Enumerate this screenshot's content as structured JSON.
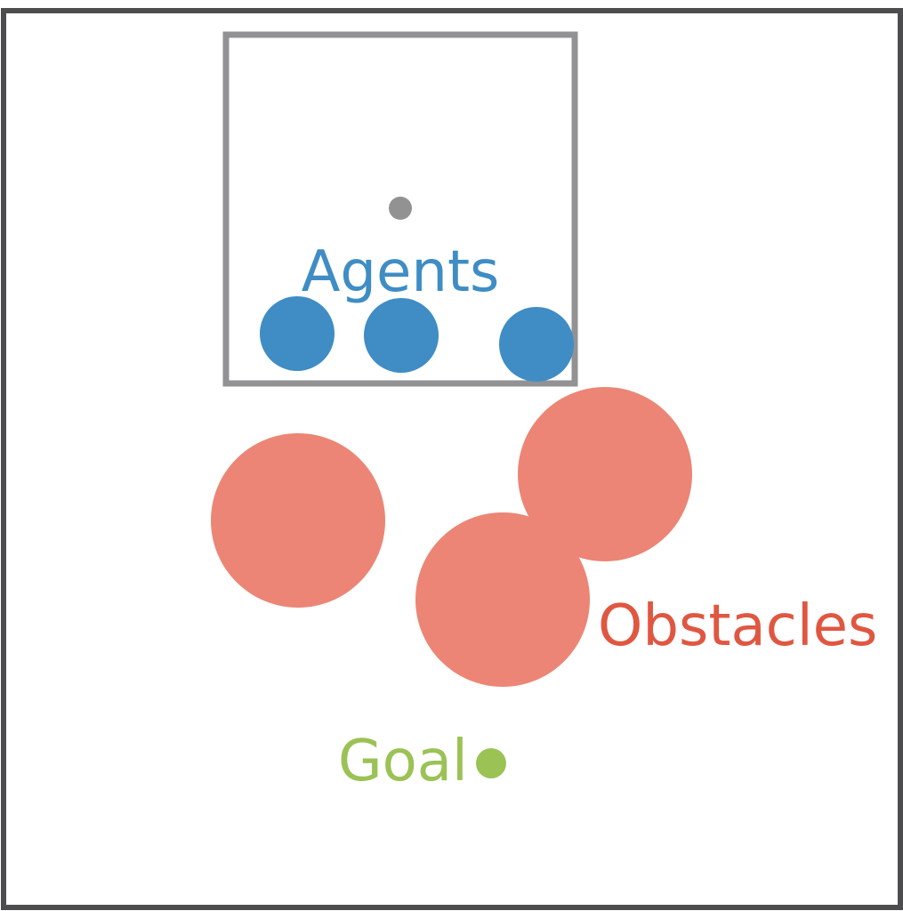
{
  "labels": {
    "agents": "Agents",
    "obstacles": "Obstacles",
    "goal": "Goal"
  },
  "colors": {
    "arena_border": "#4d4d4f",
    "spawn_region_border": "#929295",
    "spawn_center": "#929295",
    "agents": "#3f8dc4",
    "agents_label": "#3f8dc4",
    "obstacles": "#ec8575",
    "obstacles_label": "#e05741",
    "goal": "#9bc255",
    "goal_label": "#9bc255"
  },
  "elements": {
    "agent_count": 3,
    "obstacle_count": 3,
    "goal_count": 1
  }
}
